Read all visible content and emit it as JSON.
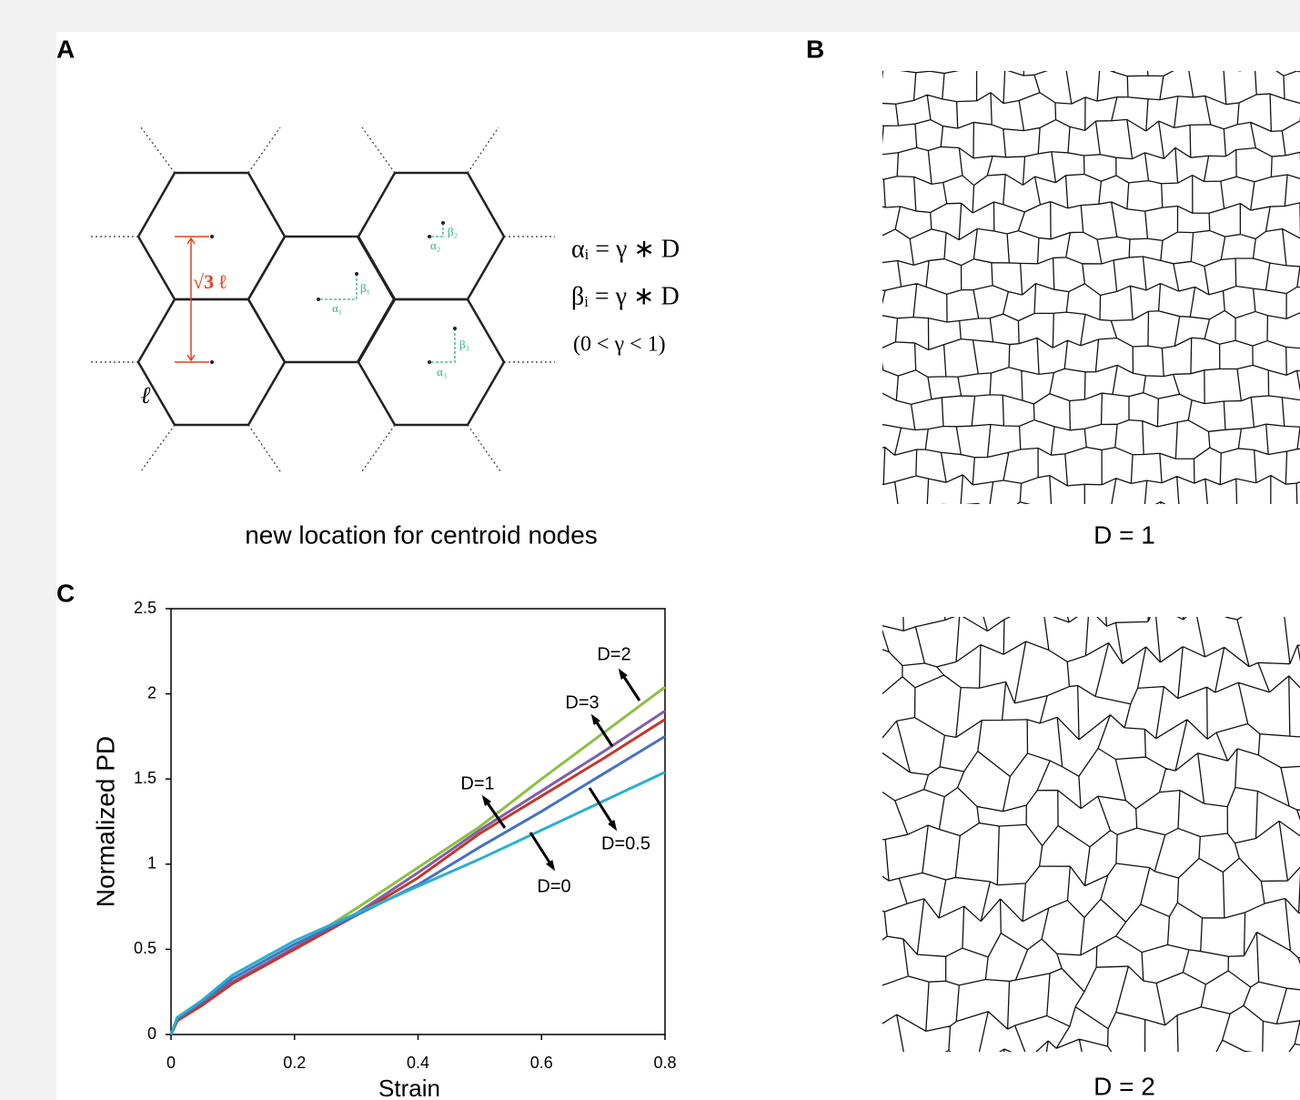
{
  "panel_a": {
    "label": "A",
    "caption": "new location for centroid nodes",
    "length_label": "ℓ",
    "spacing_label": "√3 ℓ",
    "offsets": [
      {
        "alpha": "α₁",
        "beta": "β₁"
      },
      {
        "alpha": "α₂",
        "beta": "β₂"
      },
      {
        "alpha": "α₃",
        "beta": "β₃"
      }
    ],
    "equations": [
      "αᵢ = γ ∗ D",
      "βᵢ = γ ∗ D",
      "(0 < γ < 1)"
    ]
  },
  "panel_b": {
    "label": "B",
    "captions": [
      "D = 1",
      "D = 2"
    ]
  },
  "panel_c": {
    "label": "C"
  },
  "chart_data": {
    "type": "line",
    "x_label": "Strain",
    "y_label": "Normalized PD",
    "x": [
      0,
      0.01,
      0.05,
      0.1,
      0.2,
      0.3,
      0.4,
      0.5,
      0.6,
      0.7,
      0.8
    ],
    "series": [
      {
        "name": "D=2",
        "color": "#8cbf45",
        "values": [
          0,
          0.08,
          0.18,
          0.31,
          0.51,
          0.74,
          0.98,
          1.22,
          1.5,
          1.77,
          2.04
        ]
      },
      {
        "name": "D=3",
        "color": "#7f5fa8",
        "values": [
          0,
          0.08,
          0.18,
          0.31,
          0.51,
          0.71,
          0.95,
          1.2,
          1.43,
          1.66,
          1.9
        ]
      },
      {
        "name": "D=1",
        "color": "#c0392b",
        "values": [
          0,
          0.08,
          0.17,
          0.3,
          0.5,
          0.7,
          0.92,
          1.18,
          1.4,
          1.62,
          1.85
        ]
      },
      {
        "name": "D=0.5",
        "color": "#4472c4",
        "values": [
          0,
          0.09,
          0.19,
          0.33,
          0.53,
          0.7,
          0.88,
          1.1,
          1.31,
          1.53,
          1.75
        ]
      },
      {
        "name": "D=0",
        "color": "#29b0cc",
        "values": [
          0,
          0.1,
          0.2,
          0.35,
          0.55,
          0.71,
          0.87,
          1.03,
          1.2,
          1.37,
          1.54
        ]
      }
    ],
    "xlim": [
      0,
      0.8
    ],
    "xticks": [
      0,
      0.2,
      0.4,
      0.6,
      0.8
    ],
    "ylim": [
      0,
      2.5
    ],
    "yticks": [
      0,
      0.5,
      1,
      1.5,
      2,
      2.5
    ],
    "grid": false
  }
}
